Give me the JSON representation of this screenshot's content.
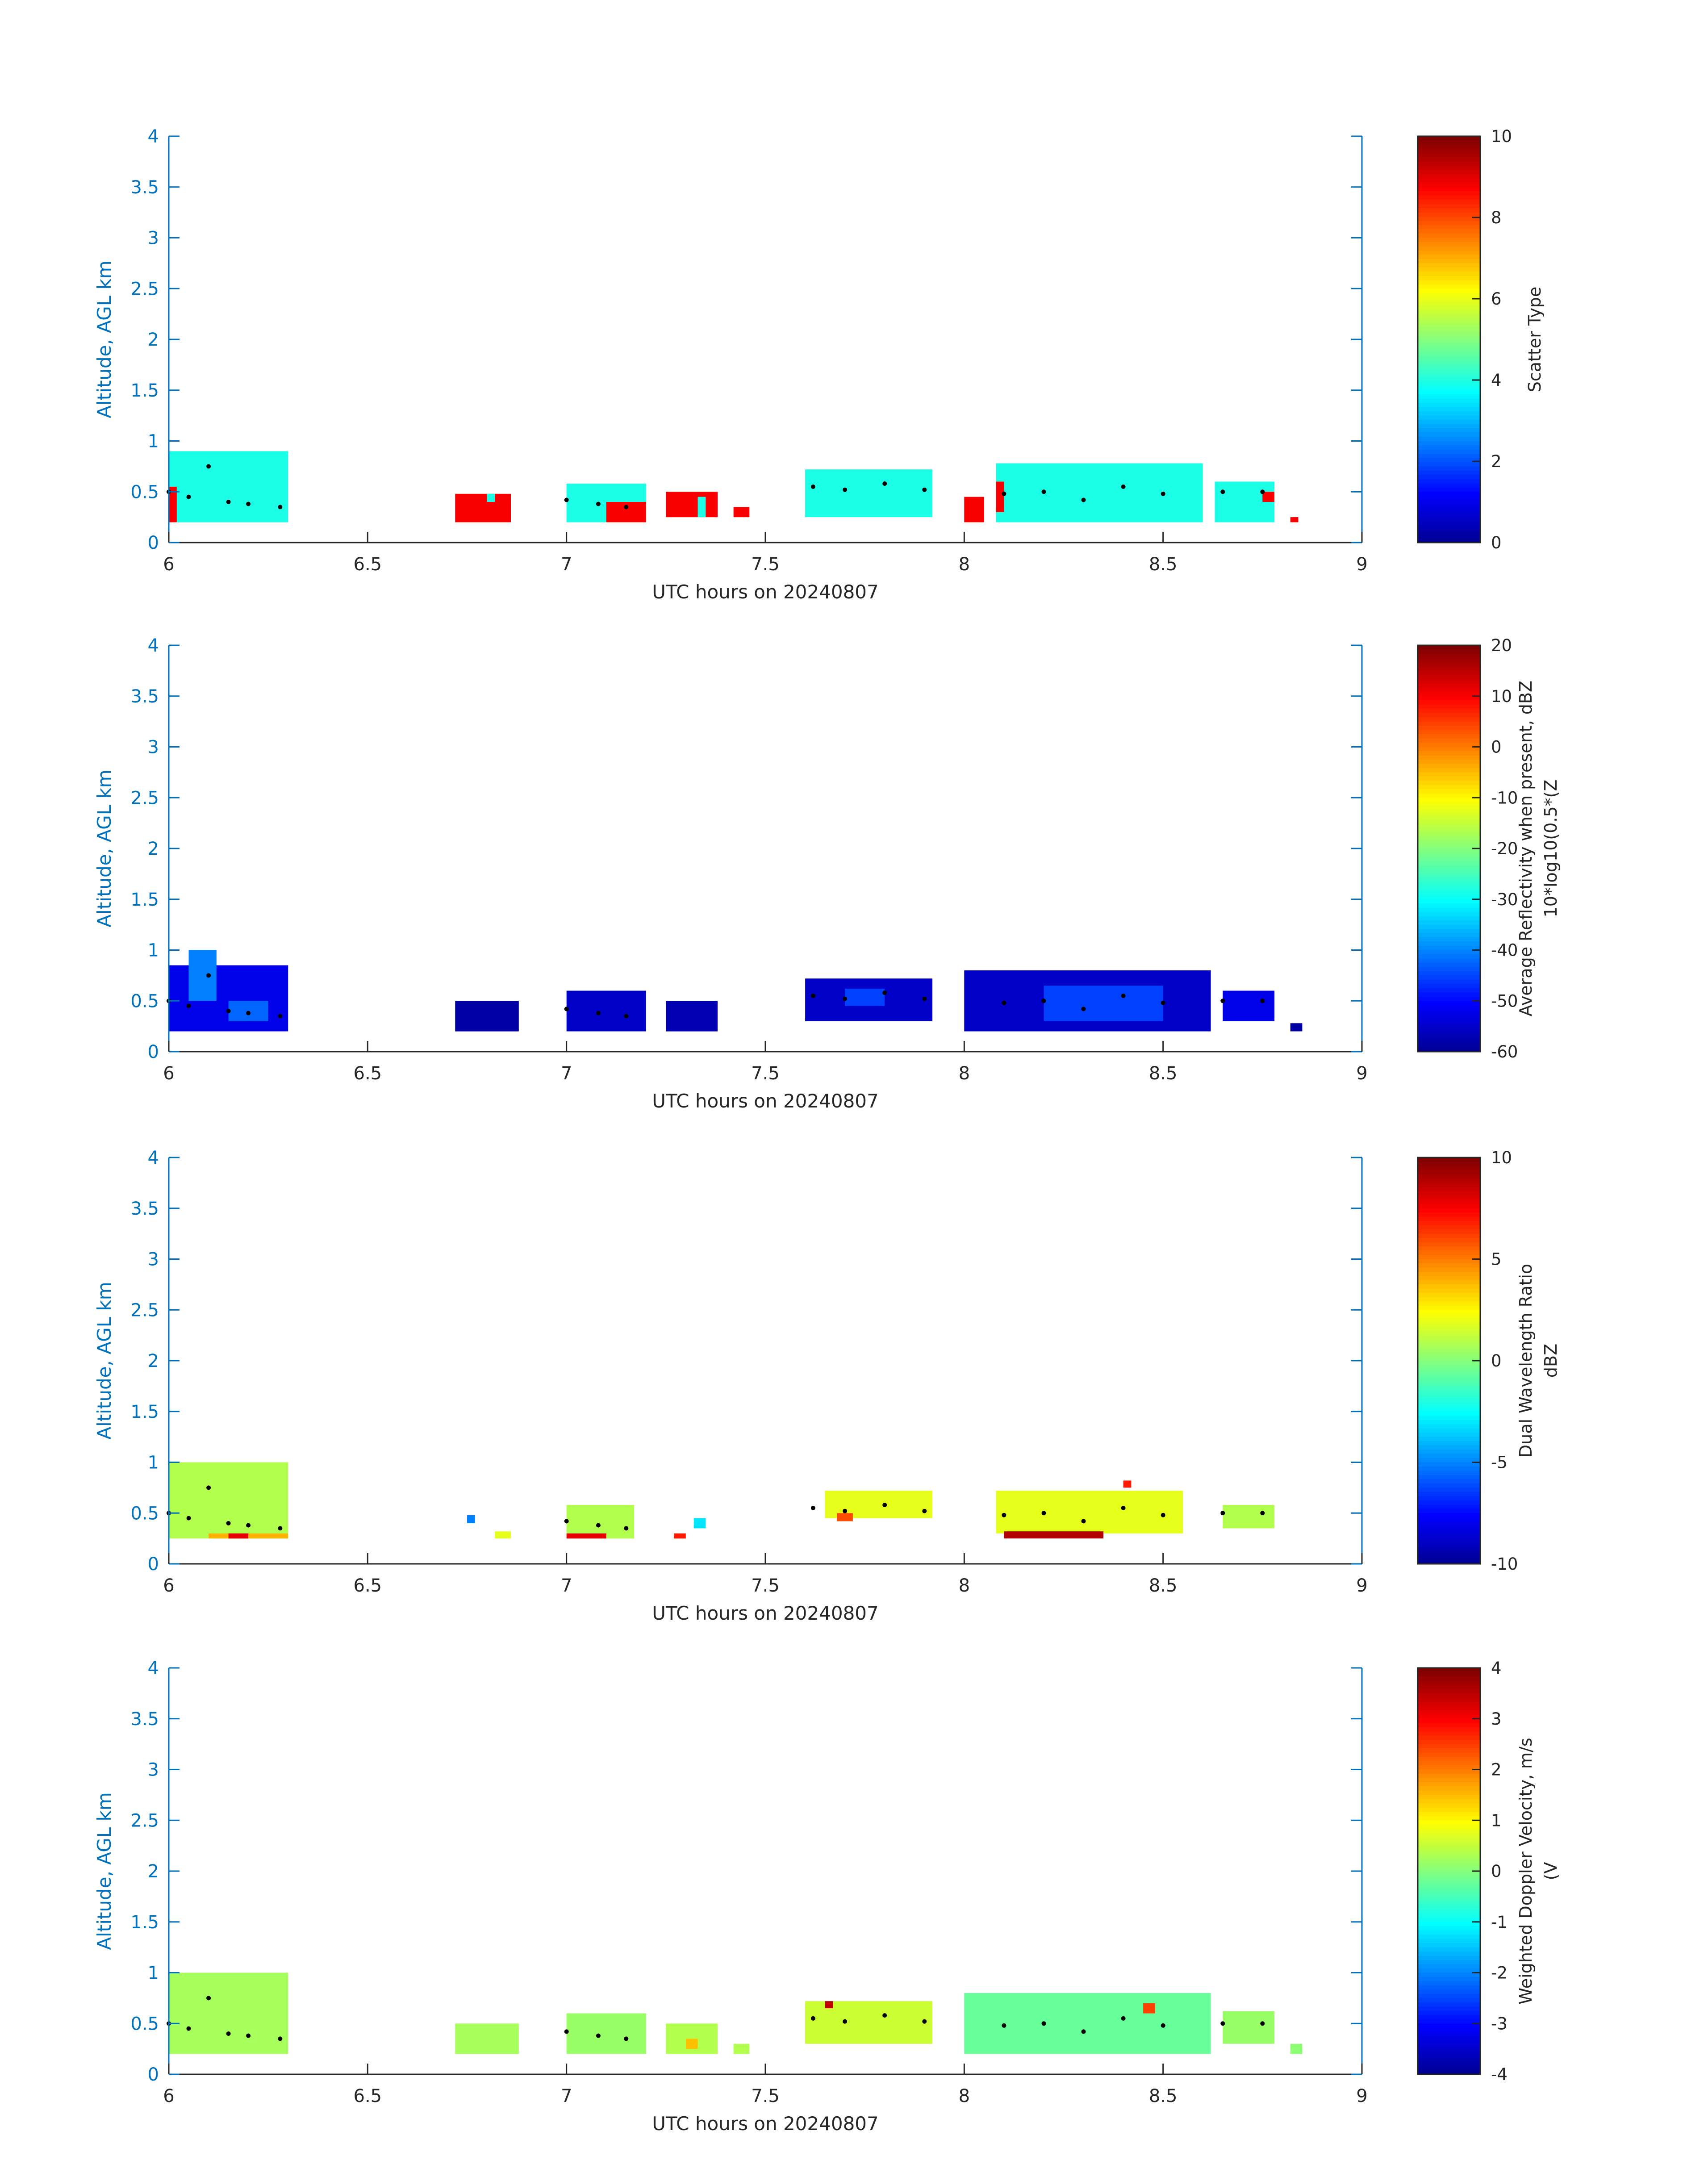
{
  "colors": {
    "yaxis": "#0072BD",
    "xaxis": "#262626",
    "centroid": "#000000"
  },
  "colormaps": {
    "jet": [
      "#00008F",
      "#0000FF",
      "#0080FF",
      "#00FFFF",
      "#80FF80",
      "#FFFF00",
      "#FF8000",
      "#FF0000",
      "#800000"
    ]
  },
  "chart_data": [
    {
      "type": "heatmap",
      "xlabel": "UTC hours on 20240807",
      "ylabel": "Altitude, AGL km",
      "xlim": [
        6,
        9
      ],
      "ylim": [
        0,
        4
      ],
      "xticks": [
        "6",
        "6.5",
        "7",
        "7.5",
        "8",
        "8.5",
        "9"
      ],
      "yticks": [
        "0",
        "0.5",
        "1",
        "1.5",
        "2",
        "2.5",
        "3",
        "3.5",
        "4"
      ],
      "colorbar": {
        "label": "Scatter Type",
        "label2": "",
        "range": [
          0,
          10
        ],
        "ticks": [
          "0",
          "2",
          "4",
          "6",
          "8",
          "10"
        ]
      },
      "field": "scatter",
      "cells": [
        [
          6.0,
          6.3,
          0.2,
          0.9,
          4
        ],
        [
          6.0,
          6.02,
          0.2,
          0.55,
          8.8
        ],
        [
          6.72,
          6.86,
          0.2,
          0.48,
          8.8
        ],
        [
          6.8,
          6.82,
          0.4,
          0.48,
          4
        ],
        [
          7.0,
          7.2,
          0.2,
          0.58,
          4
        ],
        [
          7.1,
          7.2,
          0.2,
          0.4,
          8.8
        ],
        [
          7.25,
          7.38,
          0.25,
          0.5,
          8.8
        ],
        [
          7.33,
          7.35,
          0.25,
          0.45,
          4
        ],
        [
          7.42,
          7.46,
          0.25,
          0.35,
          8.8
        ],
        [
          7.6,
          7.92,
          0.25,
          0.72,
          4
        ],
        [
          8.0,
          8.05,
          0.2,
          0.45,
          8.8
        ],
        [
          8.08,
          8.6,
          0.2,
          0.78,
          4
        ],
        [
          8.08,
          8.1,
          0.3,
          0.6,
          8.8
        ],
        [
          8.63,
          8.78,
          0.2,
          0.6,
          4
        ],
        [
          8.75,
          8.78,
          0.4,
          0.5,
          8.8
        ],
        [
          8.82,
          8.84,
          0.2,
          0.25,
          8.8
        ]
      ],
      "centroid": [
        [
          6.0,
          0.5
        ],
        [
          6.05,
          0.45
        ],
        [
          6.1,
          0.75
        ],
        [
          6.15,
          0.4
        ],
        [
          6.2,
          0.38
        ],
        [
          6.28,
          0.35
        ],
        [
          7.0,
          0.42
        ],
        [
          7.08,
          0.38
        ],
        [
          7.15,
          0.35
        ],
        [
          7.62,
          0.55
        ],
        [
          7.7,
          0.52
        ],
        [
          7.8,
          0.58
        ],
        [
          7.9,
          0.52
        ],
        [
          8.1,
          0.48
        ],
        [
          8.2,
          0.5
        ],
        [
          8.3,
          0.42
        ],
        [
          8.4,
          0.55
        ],
        [
          8.5,
          0.48
        ],
        [
          8.65,
          0.5
        ],
        [
          8.75,
          0.5
        ]
      ]
    },
    {
      "type": "heatmap",
      "xlabel": "UTC hours on 20240807",
      "ylabel": "Altitude, AGL km",
      "xlim": [
        6,
        9
      ],
      "ylim": [
        0,
        4
      ],
      "xticks": [
        "6",
        "6.5",
        "7",
        "7.5",
        "8",
        "8.5",
        "9"
      ],
      "yticks": [
        "0",
        "0.5",
        "1",
        "1.5",
        "2",
        "2.5",
        "3",
        "3.5",
        "4"
      ],
      "colorbar": {
        "label": "Average Reflectivity when present, dBZ",
        "label2": "10*log10(0.5*(Z",
        "range": [
          -60,
          20
        ],
        "ticks": [
          "-60",
          "-50",
          "-40",
          "-30",
          "-20",
          "-10",
          "0",
          "10",
          "20"
        ]
      },
      "field": "reflectivity",
      "cells": [
        [
          6.0,
          6.3,
          0.2,
          0.85,
          -52
        ],
        [
          6.05,
          6.12,
          0.5,
          1.0,
          -40
        ],
        [
          6.15,
          6.25,
          0.3,
          0.5,
          -42
        ],
        [
          6.72,
          6.88,
          0.2,
          0.5,
          -58
        ],
        [
          7.0,
          7.2,
          0.2,
          0.6,
          -55
        ],
        [
          7.25,
          7.38,
          0.2,
          0.5,
          -57
        ],
        [
          7.6,
          7.92,
          0.3,
          0.72,
          -55
        ],
        [
          7.7,
          7.8,
          0.45,
          0.62,
          -45
        ],
        [
          8.0,
          8.62,
          0.2,
          0.8,
          -55
        ],
        [
          8.2,
          8.5,
          0.3,
          0.65,
          -45
        ],
        [
          8.65,
          8.78,
          0.3,
          0.6,
          -52
        ],
        [
          8.82,
          8.85,
          0.2,
          0.28,
          -58
        ]
      ],
      "centroid": [
        [
          6.0,
          0.5
        ],
        [
          6.05,
          0.45
        ],
        [
          6.1,
          0.75
        ],
        [
          6.15,
          0.4
        ],
        [
          6.2,
          0.38
        ],
        [
          6.28,
          0.35
        ],
        [
          7.0,
          0.42
        ],
        [
          7.08,
          0.38
        ],
        [
          7.15,
          0.35
        ],
        [
          7.62,
          0.55
        ],
        [
          7.7,
          0.52
        ],
        [
          7.8,
          0.58
        ],
        [
          7.9,
          0.52
        ],
        [
          8.1,
          0.48
        ],
        [
          8.2,
          0.5
        ],
        [
          8.3,
          0.42
        ],
        [
          8.4,
          0.55
        ],
        [
          8.5,
          0.48
        ],
        [
          8.65,
          0.5
        ],
        [
          8.75,
          0.5
        ]
      ]
    },
    {
      "type": "heatmap",
      "xlabel": "UTC hours on 20240807",
      "ylabel": "Altitude, AGL km",
      "xlim": [
        6,
        9
      ],
      "ylim": [
        0,
        4
      ],
      "xticks": [
        "6",
        "6.5",
        "7",
        "7.5",
        "8",
        "8.5",
        "9"
      ],
      "yticks": [
        "0",
        "0.5",
        "1",
        "1.5",
        "2",
        "2.5",
        "3",
        "3.5",
        "4"
      ],
      "colorbar": {
        "label": "Dual Wavelength Ratio",
        "label2": "dBZ",
        "range": [
          -10,
          10
        ],
        "ticks": [
          "-10",
          "-5",
          "0",
          "5",
          "10"
        ]
      },
      "field": "dwr",
      "cells": [
        [
          6.0,
          6.3,
          0.25,
          1.0,
          1
        ],
        [
          6.1,
          6.3,
          0.25,
          0.3,
          4
        ],
        [
          6.15,
          6.2,
          0.25,
          0.3,
          8
        ],
        [
          6.75,
          6.77,
          0.4,
          0.48,
          -5
        ],
        [
          6.82,
          6.86,
          0.25,
          0.32,
          2
        ],
        [
          7.0,
          7.17,
          0.25,
          0.58,
          1
        ],
        [
          7.0,
          7.1,
          0.25,
          0.3,
          8
        ],
        [
          7.27,
          7.3,
          0.25,
          0.3,
          7
        ],
        [
          7.32,
          7.35,
          0.35,
          0.45,
          -3
        ],
        [
          7.65,
          7.92,
          0.45,
          0.72,
          2
        ],
        [
          7.68,
          7.72,
          0.42,
          0.5,
          6
        ],
        [
          8.08,
          8.55,
          0.3,
          0.72,
          2
        ],
        [
          8.1,
          8.35,
          0.25,
          0.32,
          9
        ],
        [
          8.4,
          8.42,
          0.75,
          0.82,
          7
        ],
        [
          8.65,
          8.78,
          0.35,
          0.58,
          1
        ]
      ],
      "centroid": [
        [
          6.0,
          0.5
        ],
        [
          6.05,
          0.45
        ],
        [
          6.1,
          0.75
        ],
        [
          6.15,
          0.4
        ],
        [
          6.2,
          0.38
        ],
        [
          6.28,
          0.35
        ],
        [
          7.0,
          0.42
        ],
        [
          7.08,
          0.38
        ],
        [
          7.15,
          0.35
        ],
        [
          7.62,
          0.55
        ],
        [
          7.7,
          0.52
        ],
        [
          7.8,
          0.58
        ],
        [
          7.9,
          0.52
        ],
        [
          8.1,
          0.48
        ],
        [
          8.2,
          0.5
        ],
        [
          8.3,
          0.42
        ],
        [
          8.4,
          0.55
        ],
        [
          8.5,
          0.48
        ],
        [
          8.65,
          0.5
        ],
        [
          8.75,
          0.5
        ]
      ]
    },
    {
      "type": "heatmap",
      "xlabel": "UTC hours on 20240807",
      "ylabel": "Altitude, AGL km",
      "xlim": [
        6,
        9
      ],
      "ylim": [
        0,
        4
      ],
      "xticks": [
        "6",
        "6.5",
        "7",
        "7.5",
        "8",
        "8.5",
        "9"
      ],
      "yticks": [
        "0",
        "0.5",
        "1",
        "1.5",
        "2",
        "2.5",
        "3",
        "3.5",
        "4"
      ],
      "colorbar": {
        "label": "Weighted Doppler Velocity, m/s",
        "label2": "(V",
        "range": [
          -4,
          4
        ],
        "ticks": [
          "-4",
          "-3",
          "-2",
          "-1",
          "0",
          "1",
          "2",
          "3",
          "4"
        ]
      },
      "field": "velocity",
      "cells": [
        [
          6.0,
          6.3,
          0.2,
          1.0,
          0.3
        ],
        [
          6.72,
          6.88,
          0.2,
          0.5,
          0.3
        ],
        [
          7.0,
          7.2,
          0.2,
          0.6,
          0.2
        ],
        [
          7.25,
          7.38,
          0.2,
          0.5,
          0.4
        ],
        [
          7.3,
          7.33,
          0.25,
          0.35,
          1.5
        ],
        [
          7.42,
          7.46,
          0.2,
          0.3,
          0.4
        ],
        [
          7.6,
          7.92,
          0.3,
          0.72,
          0.6
        ],
        [
          7.65,
          7.67,
          0.65,
          0.72,
          3.5
        ],
        [
          8.0,
          8.62,
          0.2,
          0.8,
          -0.2
        ],
        [
          8.45,
          8.48,
          0.6,
          0.7,
          2.5
        ],
        [
          8.65,
          8.78,
          0.3,
          0.62,
          0.2
        ],
        [
          8.82,
          8.85,
          0.2,
          0.3,
          0.1
        ]
      ],
      "centroid": [
        [
          6.0,
          0.5
        ],
        [
          6.05,
          0.45
        ],
        [
          6.1,
          0.75
        ],
        [
          6.15,
          0.4
        ],
        [
          6.2,
          0.38
        ],
        [
          6.28,
          0.35
        ],
        [
          7.0,
          0.42
        ],
        [
          7.08,
          0.38
        ],
        [
          7.15,
          0.35
        ],
        [
          7.62,
          0.55
        ],
        [
          7.7,
          0.52
        ],
        [
          7.8,
          0.58
        ],
        [
          7.9,
          0.52
        ],
        [
          8.1,
          0.48
        ],
        [
          8.2,
          0.5
        ],
        [
          8.3,
          0.42
        ],
        [
          8.4,
          0.55
        ],
        [
          8.5,
          0.48
        ],
        [
          8.65,
          0.5
        ],
        [
          8.75,
          0.5
        ]
      ]
    }
  ]
}
